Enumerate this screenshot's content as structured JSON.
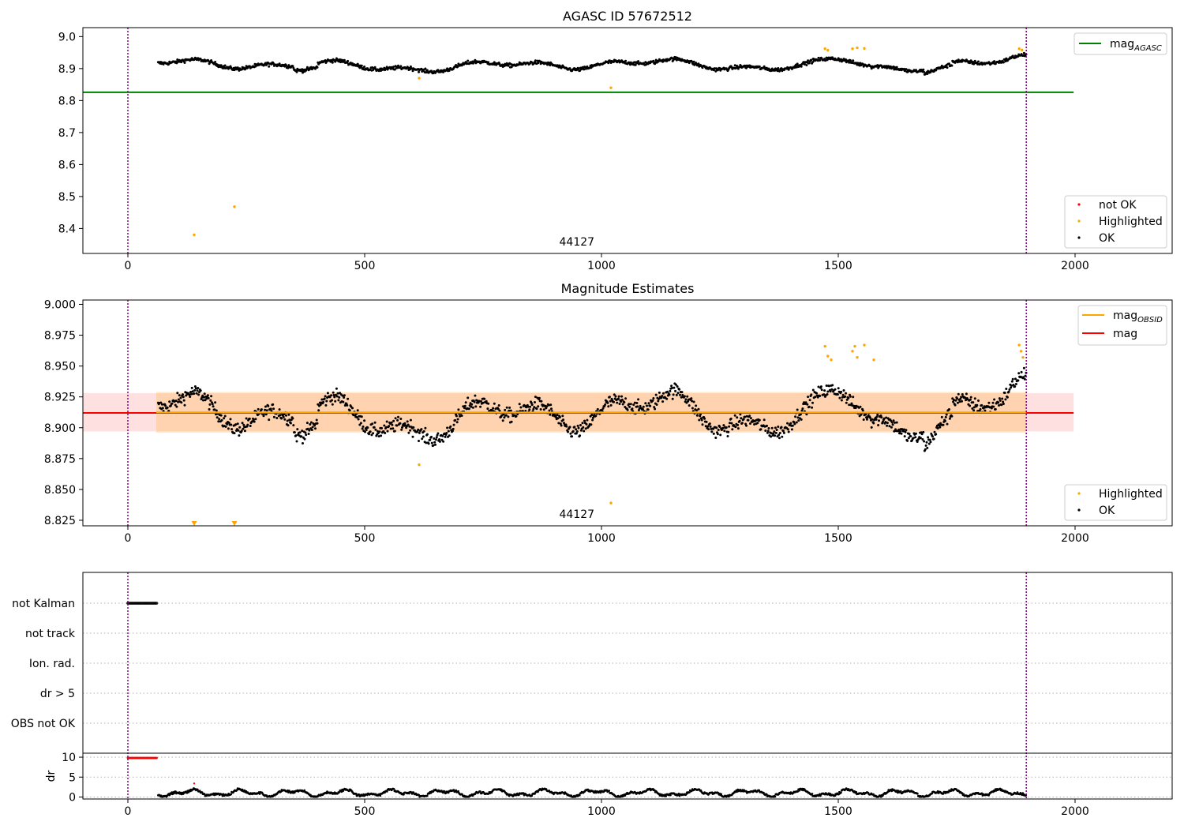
{
  "chart_data": [
    {
      "type": "scatter",
      "title": "AGASC ID 57672512",
      "xlim": [
        -95,
        2205
      ],
      "ylim": [
        8.322,
        9.028
      ],
      "x_ticks": [
        0,
        500,
        1000,
        1500,
        2000
      ],
      "x_tick_labels": [
        "0",
        "500",
        "1000",
        "1500",
        "2000"
      ],
      "y_ticks": [
        8.4,
        8.5,
        8.6,
        8.7,
        8.8,
        8.9,
        9.0
      ],
      "y_tick_labels": [
        "8.4",
        "8.5",
        "8.6",
        "8.7",
        "8.8",
        "8.9",
        "9.0"
      ],
      "vlines": [
        0,
        1897
      ],
      "hline": {
        "name": "mag_AGASC",
        "y": 8.826,
        "x_range": [
          -95,
          1997
        ],
        "color": "#008000"
      },
      "annotation": {
        "text": "44127",
        "x": 948
      },
      "legend_top": [
        {
          "label": "mag",
          "sub": "AGASC",
          "color": "#008000"
        }
      ],
      "legend_bottom": [
        {
          "label": "not OK",
          "color": "#ff0000"
        },
        {
          "label": "Highlighted",
          "color": "#ffa500"
        },
        {
          "label": "OK",
          "color": "#000000"
        }
      ],
      "highlighted_points": [
        [
          140,
          8.38
        ],
        [
          225,
          8.468
        ],
        [
          615,
          8.87
        ],
        [
          1020,
          8.84
        ],
        [
          1472,
          8.962
        ],
        [
          1478,
          8.957
        ],
        [
          1530,
          8.962
        ],
        [
          1540,
          8.965
        ],
        [
          1555,
          8.963
        ],
        [
          1882,
          8.962
        ],
        [
          1888,
          8.958
        ]
      ]
    },
    {
      "type": "scatter",
      "title": "Magnitude Estimates",
      "xlim": [
        -95,
        2205
      ],
      "ylim": [
        8.8205,
        9.0035
      ],
      "x_ticks": [
        0,
        500,
        1000,
        1500,
        2000
      ],
      "x_tick_labels": [
        "0",
        "500",
        "1000",
        "1500",
        "2000"
      ],
      "y_ticks": [
        8.825,
        8.85,
        8.875,
        8.9,
        8.925,
        8.95,
        8.975,
        9.0
      ],
      "y_tick_labels": [
        "8.825",
        "8.850",
        "8.875",
        "8.900",
        "8.925",
        "8.950",
        "8.975",
        "9.000"
      ],
      "vlines": [
        0,
        1897
      ],
      "mag_line": {
        "y": 8.912,
        "band": [
          8.897,
          8.928
        ],
        "x_range": [
          -95,
          1997
        ],
        "color": "#ff0000"
      },
      "obsid_line": {
        "y": 8.9125,
        "band": [
          8.896,
          8.929
        ],
        "x_range": [
          60,
          1897
        ],
        "color": "#ffa500"
      },
      "annotation": {
        "text": "44127",
        "x": 948
      },
      "legend_top": [
        {
          "label": "mag",
          "sub": "OBSID",
          "color": "#ffa500"
        },
        {
          "label": "mag",
          "sub": "",
          "color": "#ff0000"
        }
      ],
      "legend_bottom": [
        {
          "label": "Highlighted",
          "color": "#ffa500"
        },
        {
          "label": "OK",
          "color": "#000000"
        }
      ],
      "highlighted_points": [
        [
          615,
          8.87
        ],
        [
          1020,
          8.839
        ],
        [
          1472,
          8.966
        ],
        [
          1478,
          8.958
        ],
        [
          1485,
          8.955
        ],
        [
          1530,
          8.962
        ],
        [
          1535,
          8.966
        ],
        [
          1540,
          8.957
        ],
        [
          1555,
          8.967
        ],
        [
          1575,
          8.955
        ],
        [
          1882,
          8.967
        ],
        [
          1886,
          8.962
        ],
        [
          1890,
          8.957
        ]
      ],
      "offscale_markers_x": [
        140,
        225
      ]
    },
    {
      "type": "scatter",
      "title": "",
      "xlim": [
        -95,
        2205
      ],
      "x_ticks": [
        0,
        500,
        1000,
        1500,
        2000
      ],
      "x_tick_labels": [
        "0",
        "500",
        "1000",
        "1500",
        "2000"
      ],
      "vlines": [
        0,
        1897
      ],
      "flag_labels": [
        "not Kalman",
        "not track",
        "Ion. rad.",
        "dr > 5",
        "OBS not OK"
      ],
      "flag_not_kalman_x_range": [
        0,
        62
      ],
      "dr_ylabel": "dr",
      "dr_ylim": [
        -0.5,
        11
      ],
      "dr_y_ticks": [
        0,
        5,
        10
      ],
      "dr_y_tick_labels": [
        "0",
        "5",
        "10"
      ],
      "dr_red_points": {
        "x_range": [
          0,
          62
        ],
        "y": 9.8
      },
      "dr_red_outlier": [
        140,
        3.4
      ]
    }
  ]
}
